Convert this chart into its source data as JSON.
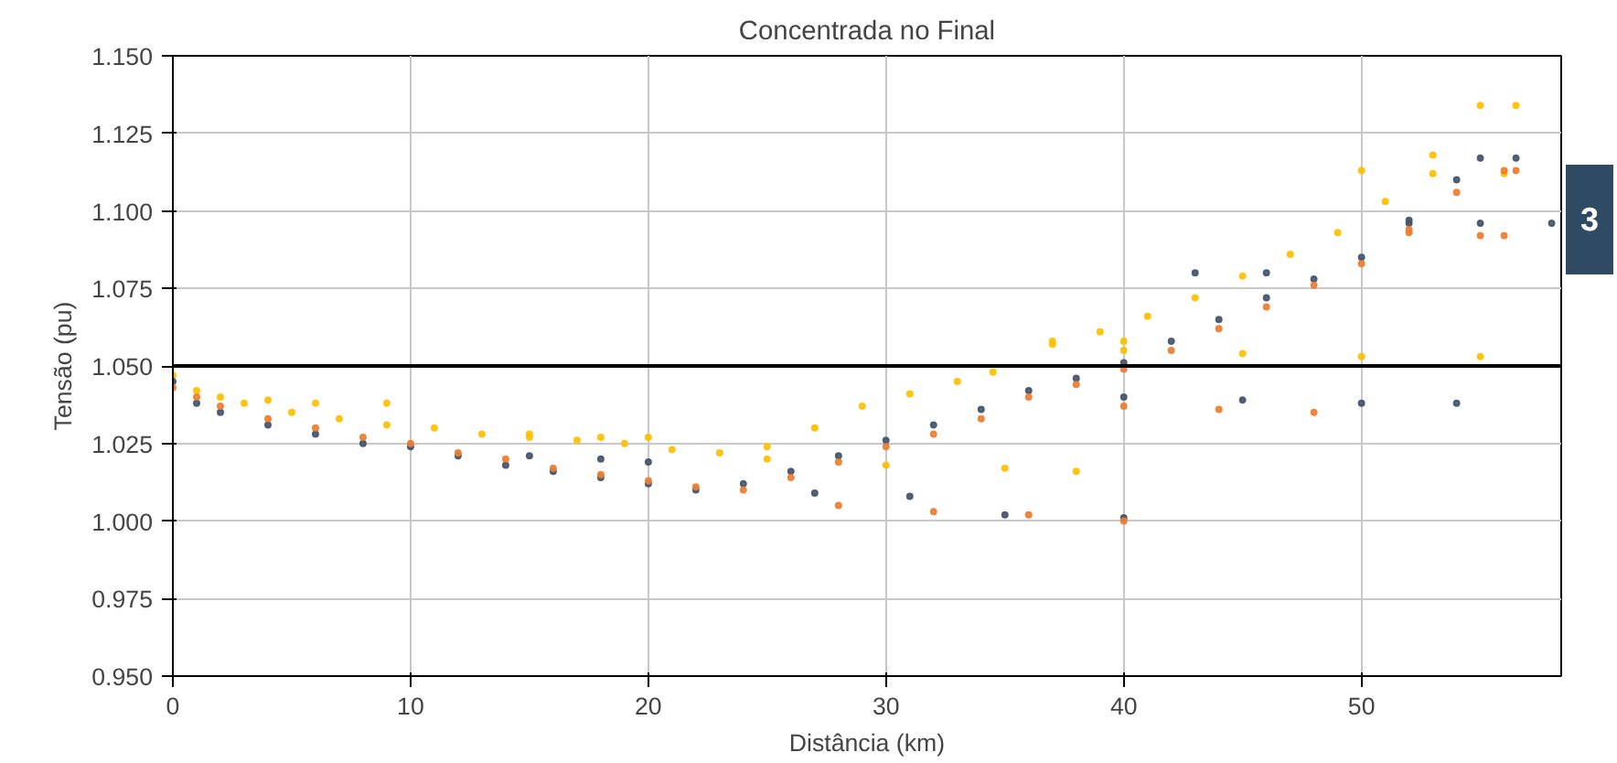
{
  "chart_data": {
    "type": "scatter",
    "title": "Concentrada no Final",
    "xlabel": "Distância (km)",
    "ylabel": "Tensão (pu)",
    "xlim": [
      0,
      58.4
    ],
    "ylim": [
      0.95,
      1.15
    ],
    "xticks": [
      0,
      10,
      20,
      30,
      40,
      50
    ],
    "yticks": [
      {
        "value": 0.95,
        "label": "0.950"
      },
      {
        "value": 0.975,
        "label": "0.975"
      },
      {
        "value": 1.0,
        "label": "1.000"
      },
      {
        "value": 1.025,
        "label": "1.025"
      },
      {
        "value": 1.05,
        "label": "1.050"
      },
      {
        "value": 1.075,
        "label": "1.075"
      },
      {
        "value": 1.1,
        "label": "1.100"
      },
      {
        "value": 1.125,
        "label": "1.125"
      },
      {
        "value": 1.15,
        "label": "1.150"
      }
    ],
    "grid": true,
    "marker": "circle",
    "ref_lines": [
      {
        "axis": "y",
        "value": 1.05,
        "color": "#000000"
      }
    ],
    "annotations": [
      "3"
    ],
    "series": [
      {
        "color": "#ffc000",
        "x": [
          0,
          1,
          2,
          3,
          5,
          7,
          9,
          11,
          13,
          15,
          17,
          19,
          21,
          23,
          25,
          27,
          29,
          31,
          33,
          34.5,
          37,
          39,
          41,
          43,
          45,
          47,
          49,
          51,
          53,
          55,
          56.5,
          4,
          6,
          9,
          15,
          18,
          20,
          25,
          30,
          35,
          38,
          40,
          45,
          50,
          55,
          50,
          53,
          56,
          37,
          40
        ],
        "values": [
          1.047,
          1.042,
          1.04,
          1.038,
          1.035,
          1.033,
          1.031,
          1.03,
          1.028,
          1.027,
          1.026,
          1.025,
          1.023,
          1.022,
          1.024,
          1.03,
          1.037,
          1.041,
          1.045,
          1.048,
          1.057,
          1.061,
          1.066,
          1.072,
          1.079,
          1.086,
          1.093,
          1.103,
          1.118,
          1.134,
          1.134,
          1.039,
          1.038,
          1.038,
          1.028,
          1.027,
          1.027,
          1.02,
          1.018,
          1.017,
          1.016,
          1.055,
          1.054,
          1.053,
          1.053,
          1.113,
          1.112,
          1.112,
          1.058,
          1.058
        ]
      },
      {
        "color": "#44546a",
        "x": [
          0,
          1,
          2,
          4,
          6,
          8,
          10,
          12,
          14,
          16,
          18,
          20,
          22,
          24,
          26,
          28,
          30,
          32,
          34,
          36,
          38,
          40,
          42,
          44,
          46,
          48,
          50,
          52,
          54,
          55,
          56.5,
          15,
          18,
          20,
          27,
          31,
          35,
          40,
          40,
          45,
          50,
          54,
          52,
          55,
          58,
          43,
          46
        ],
        "values": [
          1.045,
          1.038,
          1.035,
          1.031,
          1.028,
          1.025,
          1.024,
          1.021,
          1.018,
          1.016,
          1.014,
          1.012,
          1.01,
          1.012,
          1.016,
          1.021,
          1.026,
          1.031,
          1.036,
          1.042,
          1.046,
          1.051,
          1.058,
          1.065,
          1.072,
          1.078,
          1.085,
          1.096,
          1.11,
          1.117,
          1.117,
          1.021,
          1.02,
          1.019,
          1.009,
          1.008,
          1.002,
          1.001,
          1.04,
          1.039,
          1.038,
          1.038,
          1.097,
          1.096,
          1.096,
          1.08,
          1.08
        ]
      },
      {
        "color": "#ed7d31",
        "x": [
          0,
          1,
          2,
          4,
          6,
          8,
          10,
          12,
          14,
          16,
          18,
          20,
          22,
          24,
          26,
          28,
          30,
          32,
          34,
          36,
          38,
          40,
          42,
          44,
          46,
          48,
          50,
          52,
          54,
          56,
          56.5,
          28,
          32,
          36,
          40,
          40,
          44,
          48,
          52,
          55,
          56
        ],
        "values": [
          1.043,
          1.04,
          1.037,
          1.033,
          1.03,
          1.027,
          1.025,
          1.022,
          1.02,
          1.017,
          1.015,
          1.013,
          1.011,
          1.01,
          1.014,
          1.019,
          1.024,
          1.028,
          1.033,
          1.04,
          1.044,
          1.049,
          1.055,
          1.062,
          1.069,
          1.076,
          1.083,
          1.094,
          1.106,
          1.113,
          1.113,
          1.005,
          1.003,
          1.002,
          1.0,
          1.037,
          1.036,
          1.035,
          1.093,
          1.092,
          1.092
        ]
      }
    ]
  }
}
